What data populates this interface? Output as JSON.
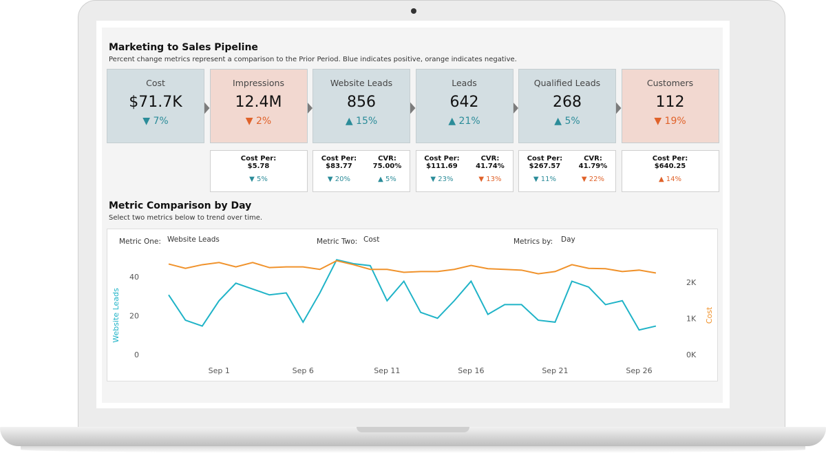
{
  "header": {
    "title": "Marketing to Sales Pipeline",
    "subtitle": "Percent change metrics represent a comparison to the Prior Period. Blue indicates positive, orange indicates negative."
  },
  "kpis": [
    {
      "name": "Cost",
      "value": "$71.7K",
      "change": "▼ 7%",
      "color": "#2b8c99",
      "bg": "#d3dee2"
    },
    {
      "name": "Impressions",
      "value": "12.4M",
      "change": "▼ 2%",
      "color": "#e0622a",
      "bg": "#f2d8d0",
      "details": [
        {
          "label": "Cost Per:",
          "value": "$5.78",
          "change": "▼ 5%",
          "color": "#2b8c99"
        }
      ]
    },
    {
      "name": "Website Leads",
      "value": "856",
      "change": "▲ 15%",
      "color": "#2b8c99",
      "bg": "#d3dee2",
      "details": [
        {
          "label": "Cost Per:",
          "value": "$83.77",
          "change": "▼ 20%",
          "color": "#2b8c99"
        },
        {
          "label": "CVR:",
          "value": "75.00%",
          "change": "▲ 5%",
          "color": "#2b8c99"
        }
      ]
    },
    {
      "name": "Leads",
      "value": "642",
      "change": "▲ 21%",
      "color": "#2b8c99",
      "bg": "#d3dee2",
      "details": [
        {
          "label": "Cost Per:",
          "value": "$111.69",
          "change": "▼ 23%",
          "color": "#2b8c99"
        },
        {
          "label": "CVR:",
          "value": "41.74%",
          "change": "▼ 13%",
          "color": "#e0622a"
        }
      ]
    },
    {
      "name": "Qualified Leads",
      "value": "268",
      "change": "▲ 5%",
      "color": "#2b8c99",
      "bg": "#d3dee2",
      "details": [
        {
          "label": "Cost Per:",
          "value": "$267.57",
          "change": "▼ 11%",
          "color": "#2b8c99"
        },
        {
          "label": "CVR:",
          "value": "41.79%",
          "change": "▼ 22%",
          "color": "#e0622a"
        }
      ]
    },
    {
      "name": "Customers",
      "value": "112",
      "change": "▼ 19%",
      "color": "#e0622a",
      "bg": "#f2d8d0",
      "details": [
        {
          "label": "Cost Per:",
          "value": "$640.25",
          "change": "▲ 14%",
          "color": "#e0622a"
        }
      ]
    }
  ],
  "section": {
    "title": "Metric Comparison by Day",
    "subtitle": "Select two metrics below to trend over time.",
    "controls": [
      {
        "label": "Metric One:",
        "value": "Website Leads"
      },
      {
        "label": "Metric Two:",
        "value": "Cost"
      },
      {
        "label": "Metrics by:",
        "value": "Day"
      }
    ]
  },
  "chart_data": {
    "type": "line",
    "categories": [
      null,
      null,
      null,
      "Sep 1",
      null,
      null,
      null,
      null,
      "Sep 6",
      null,
      null,
      null,
      null,
      "Sep 11",
      null,
      null,
      null,
      null,
      "Sep 16",
      null,
      null,
      null,
      null,
      "Sep 21",
      null,
      null,
      null,
      null,
      "Sep 26",
      null
    ],
    "ylabel": "Website Leads",
    "y2label": "Cost",
    "ylim": [
      0,
      50
    ],
    "yticks": [
      0,
      20,
      40
    ],
    "y2lim": [
      0,
      2700
    ],
    "y2ticks": [
      {
        "value": 0,
        "label": "0K"
      },
      {
        "value": 1000,
        "label": "1K"
      },
      {
        "value": 2000,
        "label": "2K"
      }
    ],
    "series": [
      {
        "name": "Website Leads",
        "color": "#1fb3c7",
        "values": [
          31,
          18,
          15,
          28,
          37,
          34,
          31,
          32,
          17,
          32,
          49,
          47,
          46,
          28,
          38,
          22,
          19,
          28,
          38,
          21,
          26,
          26,
          18,
          17,
          38,
          35,
          26,
          28,
          13,
          15
        ]
      },
      {
        "name": "Cost",
        "color": "#f0922b",
        "axis": "y2",
        "values": [
          2530,
          2410,
          2510,
          2570,
          2450,
          2570,
          2430,
          2450,
          2450,
          2380,
          2620,
          2510,
          2380,
          2380,
          2300,
          2320,
          2320,
          2380,
          2490,
          2400,
          2380,
          2360,
          2260,
          2320,
          2510,
          2410,
          2400,
          2320,
          2360,
          2280
        ]
      }
    ]
  }
}
